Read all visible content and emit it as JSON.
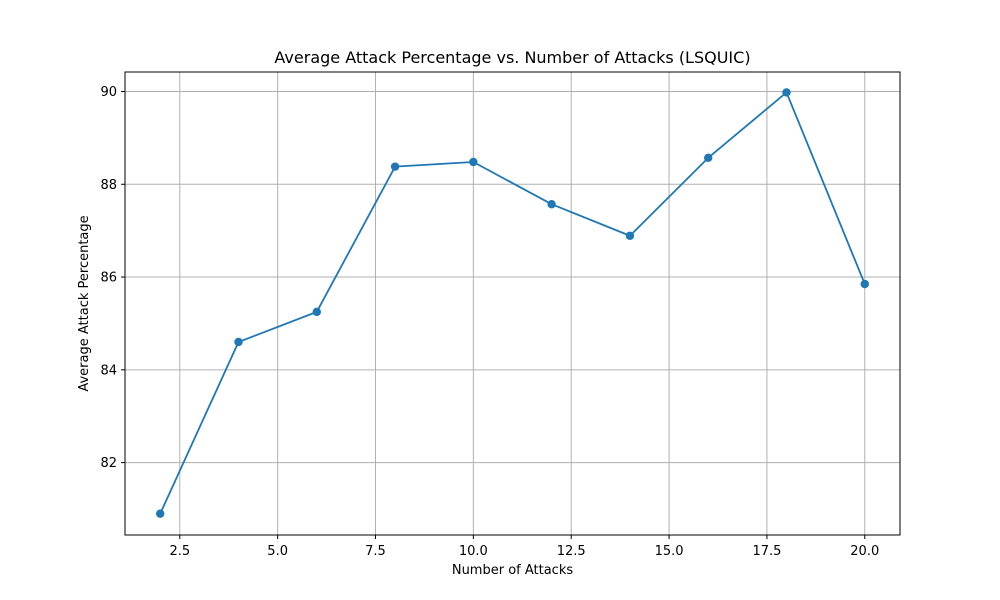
{
  "chart_data": {
    "type": "line",
    "title": "Average Attack Percentage vs. Number of Attacks (LSQUIC)",
    "xlabel": "Number of Attacks",
    "ylabel": "Average Attack Percentage",
    "x": [
      2,
      4,
      6,
      8,
      10,
      12,
      14,
      16,
      18,
      20
    ],
    "series": [
      {
        "values": [
          80.9,
          84.6,
          85.25,
          88.38,
          88.48,
          87.57,
          86.89,
          88.57,
          89.98,
          85.85
        ],
        "color": "#1f77b4",
        "marker": "circle"
      }
    ],
    "xlim": [
      1.1,
      20.9
    ],
    "ylim": [
      80.44,
      90.42
    ],
    "xticks": [
      2.5,
      5.0,
      7.5,
      10.0,
      12.5,
      15.0,
      17.5,
      20.0
    ],
    "xtick_labels": [
      "2.5",
      "5.0",
      "7.5",
      "10.0",
      "12.5",
      "15.0",
      "17.5",
      "20.0"
    ],
    "yticks": [
      82,
      84,
      86,
      88,
      90
    ],
    "ytick_labels": [
      "82",
      "84",
      "86",
      "88",
      "90"
    ],
    "grid": true,
    "legend": "none"
  }
}
